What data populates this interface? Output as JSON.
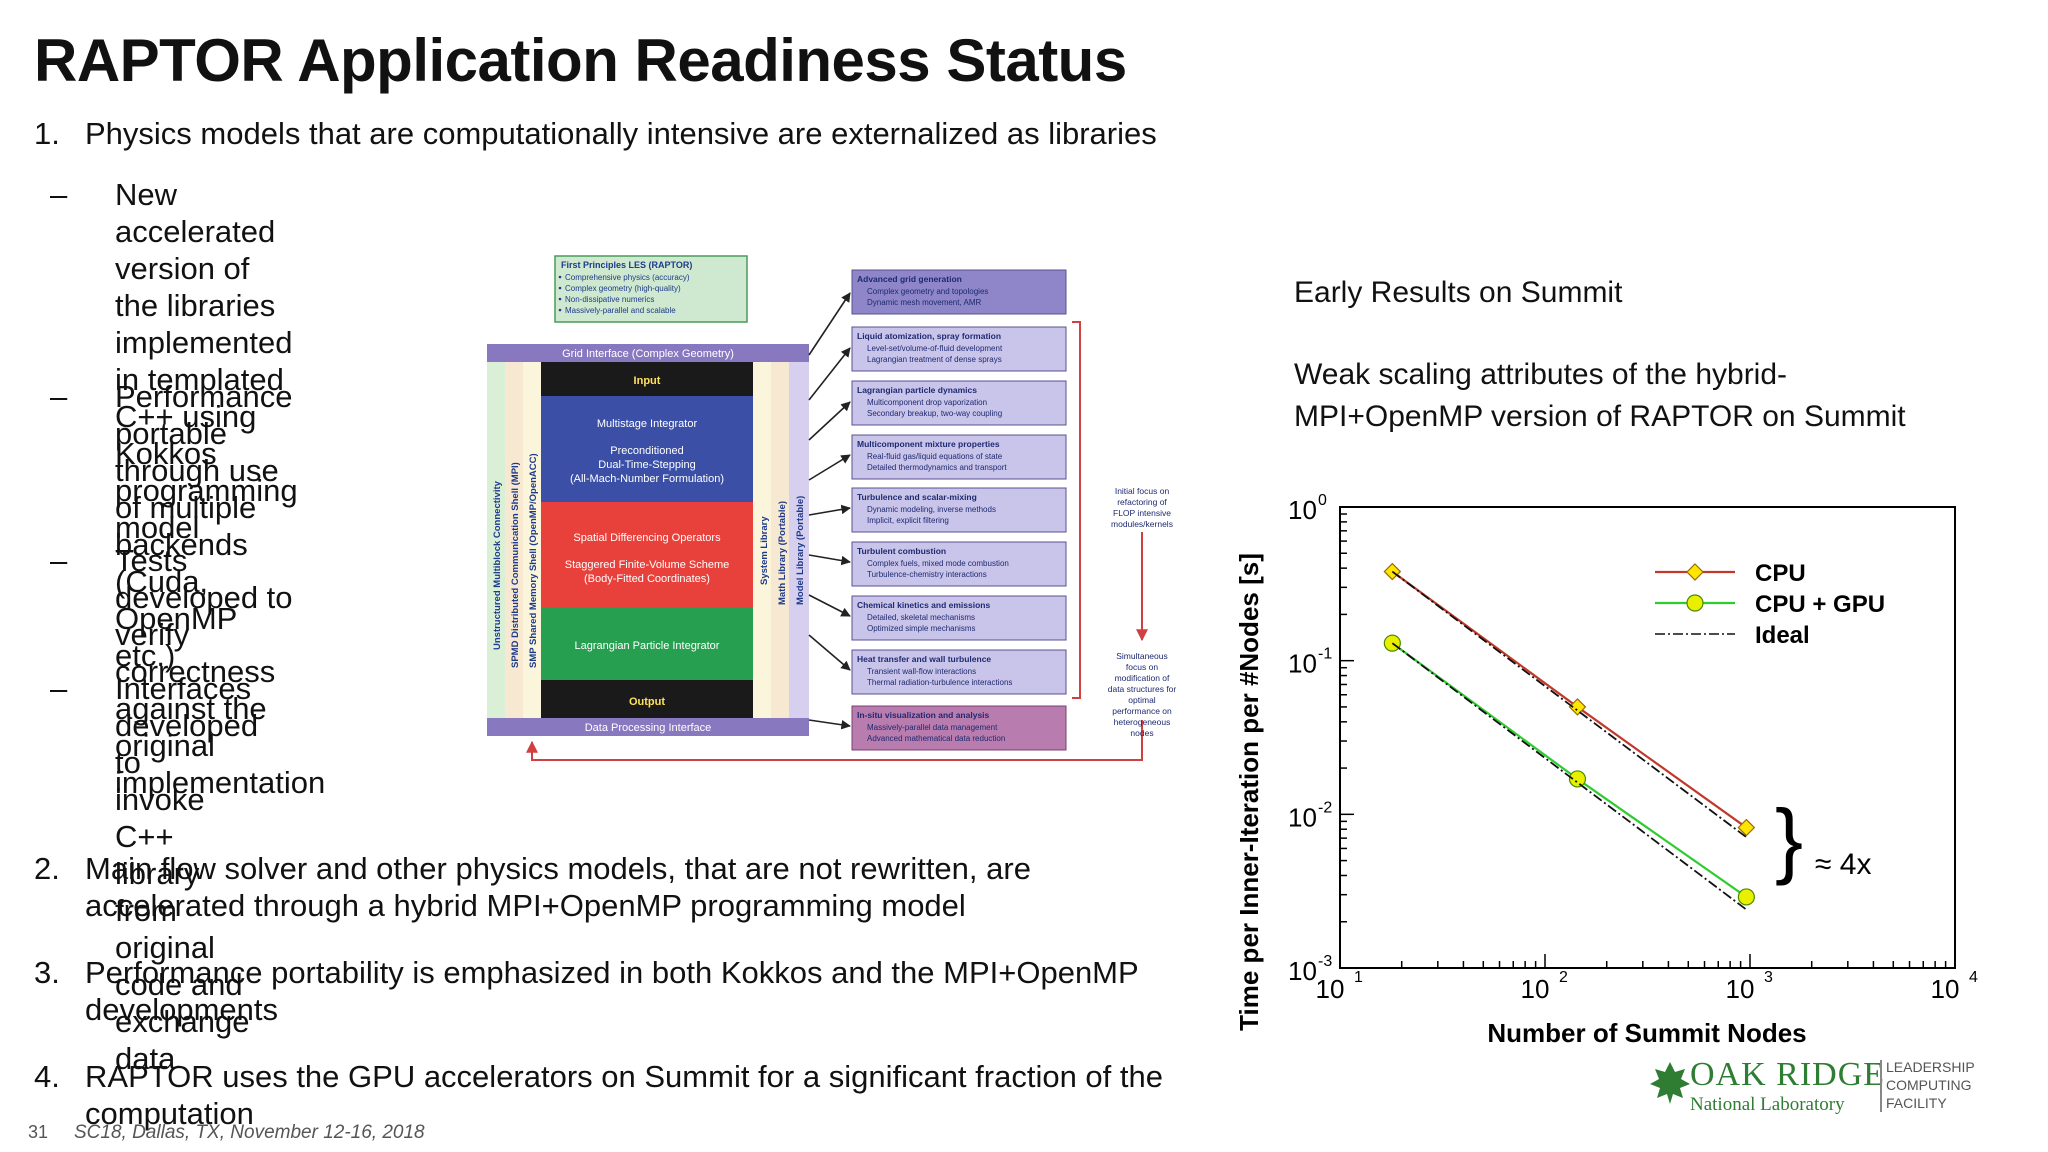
{
  "slide": {
    "title": "RAPTOR Application Readiness Status",
    "page_number": "31",
    "footer": "SC18, Dallas, TX, November 12-16, 2018"
  },
  "points": [
    {
      "num": "1.",
      "text": "Physics models that are computationally intensive are externalized as libraries"
    },
    {
      "num": "2.",
      "lines": [
        "Main flow solver and other physics models, that are not rewritten, are",
        "accelerated through a hybrid MPI+OpenMP programming model"
      ]
    },
    {
      "num": "3.",
      "lines": [
        "Performance portability is emphasized in both Kokkos and the MPI+OpenMP",
        "developments"
      ]
    },
    {
      "num": "4.",
      "lines": [
        "RAPTOR uses the GPU accelerators on Summit for a significant fraction of the",
        "computation"
      ]
    }
  ],
  "subpoints": [
    {
      "bullet": "–",
      "lines": [
        "New accelerated version of",
        "the libraries implemented",
        "in templated C++ using",
        "Kokkos programming",
        "model"
      ]
    },
    {
      "bullet": "–",
      "lines": [
        "Performance portable",
        "through use of multiple",
        "backends (Cuda, OpenMP",
        "etc.)"
      ]
    },
    {
      "bullet": "–",
      "lines": [
        "Tests developed to verify",
        "correctness against the",
        "original implementation"
      ]
    },
    {
      "bullet": "–",
      "lines": [
        "Interfaces developed to",
        "invoke C++ library from",
        "original code and exchange",
        "data"
      ]
    }
  ],
  "diagram": {
    "top_box": {
      "title": "First Principles LES (RAPTOR)",
      "items": [
        "Comprehensive physics (accuracy)",
        "Complex geometry (high-quality)",
        "Non-dissipative numerics",
        "Massively-parallel and scalable"
      ]
    },
    "grid_interface": "Grid Interface (Complex Geometry)",
    "data_interface": "Data Processing Interface",
    "input": "Input",
    "output": "Output",
    "blue_block": [
      "Multistage Integrator",
      "Preconditioned",
      "Dual-Time-Stepping",
      "(All-Mach-Number Formulation)"
    ],
    "red_block": [
      "Spatial Differencing Operators",
      "Staggered Finite-Volume Scheme",
      "(Body-Fitted Coordinates)"
    ],
    "green_block": "Lagrangian Particle Integrator",
    "left_columns": [
      "Unstructured Multiblock Connectivity",
      "SPMD Distributed Communication Shell (MPI)",
      "SMP Shared Memory Shell (OpenMP/OpenACC)"
    ],
    "right_columns": [
      "System Library",
      "Math Library (Portable)",
      "Model Library (Portable)"
    ],
    "modules": [
      {
        "title": "Advanced grid generation",
        "items": [
          "Complex geometry and topologies",
          "Dynamic mesh movement, AMR"
        ]
      },
      {
        "title": "Liquid atomization, spray formation",
        "items": [
          "Level-set/volume-of-fluid development",
          "Lagrangian treatment of dense sprays"
        ]
      },
      {
        "title": "Lagrangian particle dynamics",
        "items": [
          "Multicomponent drop vaporization",
          "Secondary breakup, two-way coupling"
        ]
      },
      {
        "title": "Multicomponent mixture properties",
        "items": [
          "Real-fluid gas/liquid equations of state",
          "Detailed thermodynamics and transport"
        ]
      },
      {
        "title": "Turbulence and scalar-mixing",
        "items": [
          "Dynamic modeling, inverse methods",
          "Implicit, explicit filtering"
        ]
      },
      {
        "title": "Turbulent combustion",
        "items": [
          "Complex fuels, mixed mode combustion",
          "Turbulence-chemistry interactions"
        ]
      },
      {
        "title": "Chemical kinetics and emissions",
        "items": [
          "Detailed, skeletal mechanisms",
          "Optimized simple mechanisms"
        ]
      },
      {
        "title": "Heat transfer and wall turbulence",
        "items": [
          "Transient wall-flow interactions",
          "Thermal radiation-turbulence interactions"
        ]
      },
      {
        "title": "In-situ visualization and analysis",
        "items": [
          "Massively-parallel data management",
          "Advanced mathematical data reduction"
        ]
      }
    ],
    "note_top": [
      "Initial focus on",
      "refactoring of",
      "FLOP intensive",
      "modules/kernels"
    ],
    "note_bottom": [
      "Simultaneous",
      "focus on",
      "modification of",
      "data structures for",
      "optimal",
      "performance on",
      "heterogeneous",
      "nodes"
    ]
  },
  "right_panel": {
    "heading": "Early Results on Summit",
    "description": [
      "Weak scaling attributes of the hybrid-",
      "MPI+OpenMP version of RAPTOR on Summit"
    ]
  },
  "chart_data": {
    "type": "line",
    "xlabel": "Number of Summit Nodes",
    "ylabel": "Time per Inner-Iteration per #Nodes [s]",
    "x_scale": "log",
    "y_scale": "log",
    "xlim": [
      10,
      10000
    ],
    "ylim": [
      0.001,
      1
    ],
    "x_ticks": [
      {
        "base": "10",
        "exp": "1"
      },
      {
        "base": "10",
        "exp": "2"
      },
      {
        "base": "10",
        "exp": "3"
      },
      {
        "base": "10",
        "exp": "4"
      }
    ],
    "y_ticks": [
      {
        "base": "10",
        "exp": "0"
      },
      {
        "base": "10",
        "exp": "-1"
      },
      {
        "base": "10",
        "exp": "-2"
      },
      {
        "base": "10",
        "exp": "-3"
      }
    ],
    "legend_position": "top-right",
    "grid": false,
    "series": [
      {
        "name": "CPU",
        "color": "#c0392b",
        "marker": "diamond",
        "marker_color": "#ffe600",
        "x": [
          18,
          144,
          960
        ],
        "y": [
          0.38,
          0.05,
          0.0082
        ]
      },
      {
        "name": "CPU + GPU",
        "color": "#2ecc2e",
        "marker": "circle",
        "marker_color": "#e8f000",
        "x": [
          18,
          144,
          960
        ],
        "y": [
          0.13,
          0.017,
          0.0029
        ]
      },
      {
        "name": "Ideal",
        "color": "#111111",
        "dash": true,
        "x": [
          18,
          960
        ],
        "y": [
          0.38,
          0.0071
        ]
      },
      {
        "name": "",
        "color": "#111111",
        "dash": true,
        "x": [
          18,
          960
        ],
        "y": [
          0.13,
          0.0024
        ]
      }
    ],
    "annotation": "≈ 4x"
  },
  "logo": {
    "name": "OAK RIDGE",
    "sub": "National Laboratory",
    "right": [
      "LEADERSHIP",
      "COMPUTING",
      "FACILITY"
    ]
  },
  "colors": {
    "blue": "#3a4fa5",
    "red": "#e8403a",
    "green": "#26a050",
    "purple": "#8878c0",
    "lavender": "#c9c4ea",
    "mint": "#cfe9d0",
    "ornl_green": "#2e7d32"
  }
}
